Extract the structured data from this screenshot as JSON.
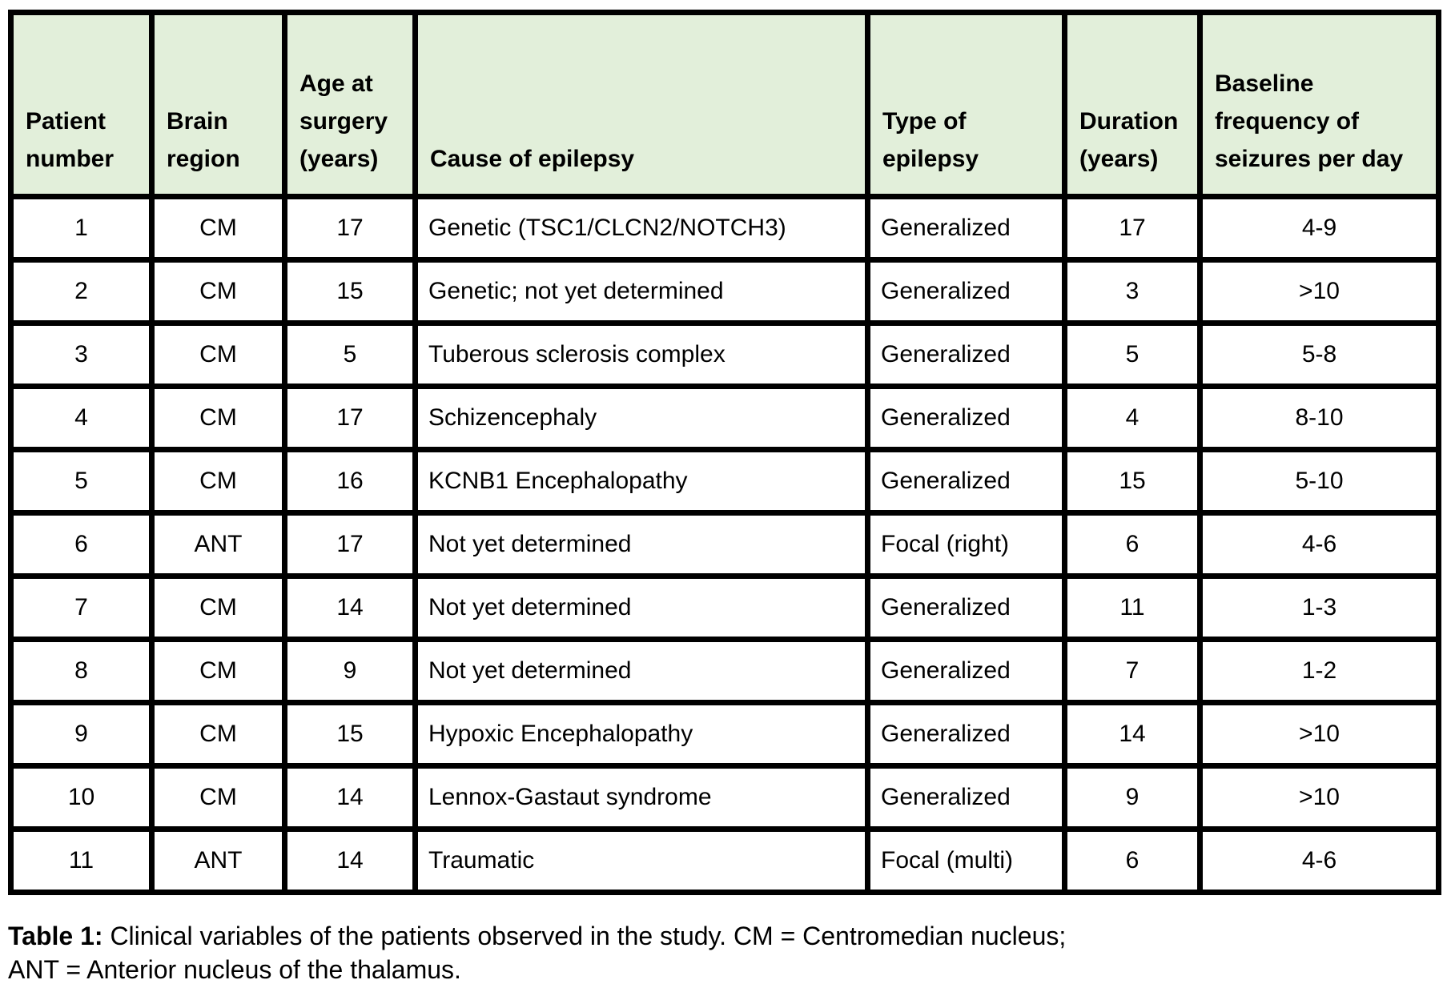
{
  "table": {
    "columns": [
      {
        "id": "patient-number",
        "label": "Patient number"
      },
      {
        "id": "brain-region",
        "label": "Brain region"
      },
      {
        "id": "age-at-surgery",
        "label": "Age at surgery (years)"
      },
      {
        "id": "cause-of-epilepsy",
        "label": "Cause of epilepsy"
      },
      {
        "id": "type-of-epilepsy",
        "label": "Type of epilepsy"
      },
      {
        "id": "duration",
        "label": "Duration (years)"
      },
      {
        "id": "baseline-frequency",
        "label": "Baseline frequency of seizures per day"
      }
    ],
    "rows": [
      [
        "1",
        "CM",
        "17",
        "Genetic (TSC1/CLCN2/NOTCH3)",
        "Generalized",
        "17",
        "4-9"
      ],
      [
        "2",
        "CM",
        "15",
        "Genetic; not yet determined",
        "Generalized",
        "3",
        ">10"
      ],
      [
        "3",
        "CM",
        "5",
        "Tuberous sclerosis complex",
        "Generalized",
        "5",
        "5-8"
      ],
      [
        "4",
        "CM",
        "17",
        "Schizencephaly",
        "Generalized",
        "4",
        "8-10"
      ],
      [
        "5",
        "CM",
        "16",
        "KCNB1 Encephalopathy",
        "Generalized",
        "15",
        "5-10"
      ],
      [
        "6",
        "ANT",
        "17",
        "Not yet determined",
        "Focal (right)",
        "6",
        "4-6"
      ],
      [
        "7",
        "CM",
        "14",
        "Not yet determined",
        "Generalized",
        "11",
        "1-3"
      ],
      [
        "8",
        "CM",
        "9",
        "Not yet determined",
        "Generalized",
        "7",
        "1-2"
      ],
      [
        "9",
        "CM",
        "15",
        "Hypoxic Encephalopathy",
        "Generalized",
        "14",
        ">10"
      ],
      [
        "10",
        "CM",
        "14",
        "Lennox-Gastaut syndrome",
        "Generalized",
        "9",
        ">10"
      ],
      [
        "11",
        "ANT",
        "14",
        "Traumatic",
        "Focal (multi)",
        "6",
        "4-6"
      ]
    ]
  },
  "caption": {
    "bold": "Table 1:",
    "rest1": " Clinical variables of the patients observed in the study. CM = Centromedian nucleus;",
    "line2": "ANT = Anterior nucleus of the thalamus."
  },
  "colors": {
    "header_bg": "#e2efda",
    "border": "#000000",
    "text": "#000000",
    "page_bg": "#ffffff"
  }
}
